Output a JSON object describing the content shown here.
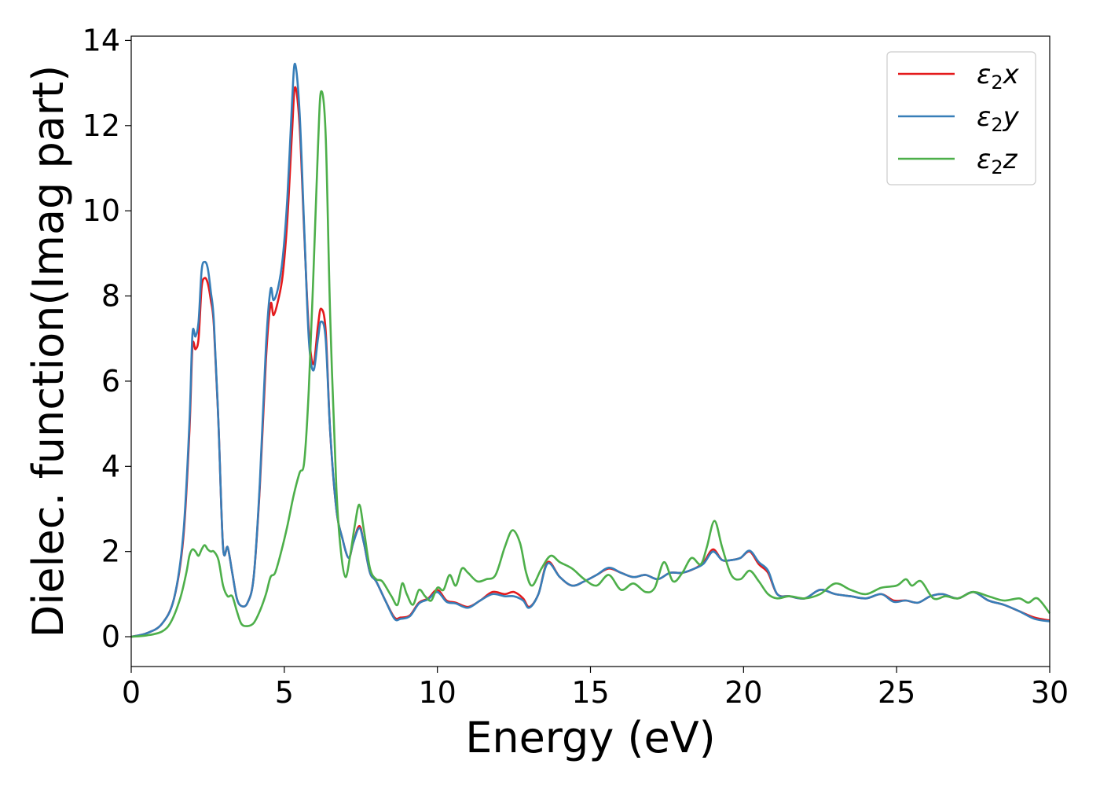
{
  "chart_data": {
    "type": "line",
    "title": "",
    "xlabel": "Energy (eV)",
    "ylabel": "Dielec. function(Imag part)",
    "xlim": [
      0,
      30
    ],
    "ylim": [
      -0.7,
      14.1
    ],
    "xticks": [
      0,
      5,
      10,
      15,
      20,
      25,
      30
    ],
    "yticks": [
      0,
      2,
      4,
      6,
      8,
      10,
      12,
      14
    ],
    "grid": false,
    "legend_position": "top-right",
    "series": [
      {
        "name": "ε₂x",
        "legend_base": "ε",
        "legend_sub": "2",
        "legend_suffix": "x",
        "color": "#e41a1c",
        "x": [
          0,
          0.5,
          1.0,
          1.4,
          1.7,
          1.9,
          2.0,
          2.1,
          2.2,
          2.3,
          2.4,
          2.5,
          2.6,
          2.7,
          2.85,
          3.0,
          3.15,
          3.3,
          3.45,
          3.6,
          3.8,
          4.0,
          4.2,
          4.4,
          4.55,
          4.65,
          4.8,
          4.95,
          5.1,
          5.25,
          5.35,
          5.5,
          5.65,
          5.8,
          5.95,
          6.1,
          6.2,
          6.35,
          6.5,
          6.7,
          6.9,
          7.1,
          7.25,
          7.45,
          7.6,
          7.8,
          8.0,
          8.3,
          8.6,
          8.8,
          9.1,
          9.4,
          9.7,
          10.0,
          10.3,
          10.6,
          11.0,
          11.4,
          11.8,
          12.2,
          12.5,
          12.8,
          13.0,
          13.3,
          13.6,
          14.0,
          14.4,
          14.8,
          15.2,
          15.6,
          16.0,
          16.4,
          16.8,
          17.2,
          17.6,
          18.0,
          18.4,
          18.7,
          19.0,
          19.3,
          19.6,
          19.9,
          20.2,
          20.5,
          20.8,
          21.1,
          21.5,
          22.0,
          22.5,
          23.0,
          23.5,
          24.0,
          24.5,
          24.9,
          25.3,
          25.7,
          26.1,
          26.5,
          27.0,
          27.5,
          28.0,
          28.5,
          29.0,
          29.5,
          30.0
        ],
        "values": [
          0,
          0.08,
          0.3,
          0.9,
          2.3,
          4.8,
          6.8,
          6.75,
          7.0,
          8.2,
          8.42,
          8.3,
          7.9,
          7.3,
          5.0,
          2.1,
          2.1,
          1.5,
          0.9,
          0.72,
          0.8,
          1.4,
          3.5,
          6.5,
          7.8,
          7.55,
          7.9,
          8.5,
          9.8,
          11.8,
          12.9,
          12.0,
          9.5,
          7.2,
          6.4,
          7.3,
          7.7,
          7.2,
          4.8,
          3.0,
          2.3,
          1.85,
          2.2,
          2.6,
          2.2,
          1.5,
          1.3,
          0.85,
          0.45,
          0.45,
          0.5,
          0.8,
          0.9,
          1.1,
          0.85,
          0.8,
          0.7,
          0.85,
          1.05,
          1.0,
          1.05,
          0.9,
          0.7,
          1.0,
          1.75,
          1.4,
          1.2,
          1.3,
          1.45,
          1.6,
          1.5,
          1.4,
          1.45,
          1.35,
          1.5,
          1.5,
          1.6,
          1.75,
          2.05,
          1.8,
          1.8,
          1.85,
          2.0,
          1.7,
          1.5,
          1.0,
          0.95,
          0.9,
          1.1,
          1.0,
          0.95,
          0.9,
          1.0,
          0.85,
          0.85,
          0.8,
          0.95,
          1.0,
          0.9,
          1.05,
          0.85,
          0.75,
          0.6,
          0.45,
          0.38
        ]
      },
      {
        "name": "ε₂y",
        "legend_base": "ε",
        "legend_sub": "2",
        "legend_suffix": "y",
        "color": "#377eb8",
        "x": [
          0,
          0.5,
          1.0,
          1.4,
          1.7,
          1.9,
          2.0,
          2.1,
          2.2,
          2.3,
          2.4,
          2.5,
          2.6,
          2.7,
          2.85,
          3.0,
          3.15,
          3.3,
          3.45,
          3.6,
          3.8,
          4.0,
          4.2,
          4.4,
          4.55,
          4.65,
          4.8,
          4.95,
          5.1,
          5.25,
          5.35,
          5.5,
          5.65,
          5.8,
          5.95,
          6.1,
          6.2,
          6.35,
          6.5,
          6.7,
          6.9,
          7.1,
          7.25,
          7.45,
          7.6,
          7.8,
          8.0,
          8.3,
          8.6,
          8.8,
          9.1,
          9.4,
          9.7,
          10.0,
          10.3,
          10.6,
          11.0,
          11.4,
          11.8,
          12.2,
          12.5,
          12.8,
          13.0,
          13.3,
          13.6,
          14.0,
          14.4,
          14.8,
          15.2,
          15.6,
          16.0,
          16.4,
          16.8,
          17.2,
          17.6,
          18.0,
          18.4,
          18.7,
          19.0,
          19.3,
          19.6,
          19.9,
          20.2,
          20.5,
          20.8,
          21.1,
          21.5,
          22.0,
          22.5,
          23.0,
          23.5,
          24.0,
          24.5,
          24.9,
          25.3,
          25.7,
          26.1,
          26.5,
          27.0,
          27.5,
          28.0,
          28.5,
          29.0,
          29.5,
          30.0
        ],
        "values": [
          0,
          0.08,
          0.3,
          0.9,
          2.4,
          5.0,
          7.1,
          7.05,
          7.4,
          8.6,
          8.8,
          8.65,
          8.1,
          7.4,
          5.0,
          2.1,
          2.1,
          1.5,
          0.9,
          0.72,
          0.8,
          1.4,
          3.6,
          6.8,
          8.15,
          7.9,
          8.2,
          8.9,
          10.3,
          12.5,
          13.45,
          12.3,
          9.6,
          7.0,
          6.25,
          7.0,
          7.4,
          7.0,
          4.8,
          3.0,
          2.3,
          1.85,
          2.2,
          2.55,
          2.2,
          1.5,
          1.3,
          0.85,
          0.42,
          0.42,
          0.48,
          0.78,
          0.88,
          1.05,
          0.82,
          0.78,
          0.68,
          0.85,
          1.0,
          0.95,
          0.95,
          0.85,
          0.68,
          1.0,
          1.72,
          1.4,
          1.2,
          1.3,
          1.45,
          1.62,
          1.5,
          1.4,
          1.45,
          1.35,
          1.5,
          1.5,
          1.6,
          1.72,
          2.0,
          1.8,
          1.8,
          1.85,
          2.02,
          1.75,
          1.55,
          1.0,
          0.95,
          0.9,
          1.1,
          1.0,
          0.95,
          0.9,
          1.0,
          0.82,
          0.85,
          0.8,
          0.95,
          1.0,
          0.9,
          1.05,
          0.85,
          0.75,
          0.6,
          0.42,
          0.36
        ]
      },
      {
        "name": "ε₂z",
        "legend_base": "ε",
        "legend_sub": "2",
        "legend_suffix": "z",
        "color": "#4daf4a",
        "x": [
          0,
          0.5,
          1.0,
          1.3,
          1.6,
          1.8,
          1.9,
          2.0,
          2.1,
          2.2,
          2.3,
          2.4,
          2.5,
          2.6,
          2.7,
          2.85,
          3.0,
          3.15,
          3.3,
          3.45,
          3.6,
          3.8,
          4.0,
          4.2,
          4.4,
          4.55,
          4.7,
          4.9,
          5.1,
          5.3,
          5.5,
          5.65,
          5.8,
          5.95,
          6.1,
          6.2,
          6.35,
          6.5,
          6.7,
          6.85,
          7.0,
          7.15,
          7.3,
          7.45,
          7.6,
          7.8,
          8.0,
          8.2,
          8.5,
          8.7,
          8.85,
          9.0,
          9.2,
          9.4,
          9.6,
          9.8,
          10.0,
          10.2,
          10.4,
          10.6,
          10.8,
          11.0,
          11.3,
          11.6,
          11.9,
          12.2,
          12.45,
          12.7,
          12.9,
          13.1,
          13.4,
          13.7,
          14.0,
          14.4,
          14.8,
          15.2,
          15.6,
          16.0,
          16.4,
          16.8,
          17.1,
          17.4,
          17.7,
          18.0,
          18.3,
          18.6,
          18.8,
          19.05,
          19.3,
          19.6,
          19.9,
          20.2,
          20.5,
          20.8,
          21.1,
          21.5,
          22.0,
          22.5,
          23.0,
          23.5,
          24.0,
          24.5,
          25.0,
          25.3,
          25.5,
          25.8,
          26.2,
          26.6,
          27.0,
          27.5,
          28.0,
          28.5,
          29.0,
          29.3,
          29.6,
          30.0
        ],
        "values": [
          0,
          0.03,
          0.12,
          0.35,
          0.9,
          1.5,
          1.9,
          2.05,
          2.0,
          1.9,
          2.05,
          2.15,
          2.05,
          2.0,
          2.0,
          1.8,
          1.2,
          0.95,
          0.95,
          0.6,
          0.3,
          0.25,
          0.32,
          0.6,
          1.0,
          1.4,
          1.5,
          2.0,
          2.6,
          3.3,
          3.85,
          4.1,
          5.8,
          8.5,
          11.5,
          12.8,
          11.8,
          7.5,
          3.5,
          2.0,
          1.4,
          1.9,
          2.6,
          3.1,
          2.5,
          1.6,
          1.35,
          1.3,
          0.95,
          0.75,
          1.25,
          1.0,
          0.75,
          1.1,
          0.95,
          0.85,
          1.15,
          1.1,
          1.45,
          1.2,
          1.6,
          1.5,
          1.3,
          1.35,
          1.45,
          2.1,
          2.5,
          2.2,
          1.5,
          1.2,
          1.6,
          1.9,
          1.75,
          1.6,
          1.35,
          1.2,
          1.45,
          1.1,
          1.25,
          1.05,
          1.15,
          1.75,
          1.3,
          1.5,
          1.85,
          1.7,
          2.1,
          2.72,
          2.1,
          1.45,
          1.35,
          1.55,
          1.3,
          1.0,
          0.9,
          0.95,
          0.9,
          1.0,
          1.25,
          1.1,
          1.0,
          1.15,
          1.2,
          1.35,
          1.2,
          1.3,
          0.9,
          0.95,
          0.9,
          1.05,
          0.95,
          0.85,
          0.9,
          0.8,
          0.9,
          0.55
        ]
      }
    ]
  }
}
